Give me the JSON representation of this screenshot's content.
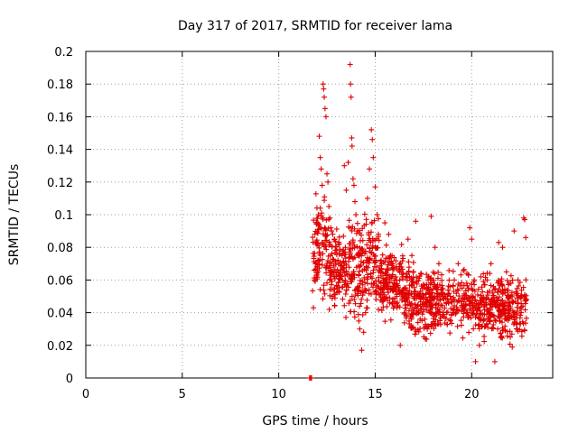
{
  "chart_data": {
    "type": "scatter",
    "title": "Day 317 of 2017, SRMTID for receiver lama",
    "xlabel": "GPS time / hours",
    "ylabel": "SRMTID / TECUs",
    "xlim": [
      0,
      24.2
    ],
    "ylim": [
      0,
      0.2
    ],
    "xticks": [
      0,
      5,
      10,
      15,
      20
    ],
    "xtick_labels": [
      "0",
      "5",
      "10",
      "15",
      "20"
    ],
    "yticks": [
      0,
      0.02,
      0.04,
      0.06,
      0.08,
      0.1,
      0.12,
      0.14,
      0.16,
      0.18,
      0.2
    ],
    "ytick_labels": [
      "0",
      "0.02",
      "0.04",
      "0.06",
      "0.08",
      "0.1",
      "0.12",
      "0.14",
      "0.16",
      "0.18",
      "0.2"
    ],
    "grid": true,
    "marker": "+",
    "color": "#e00000",
    "series": [
      {
        "name": "SRMTID",
        "points": [
          [
            11.6,
            0.0
          ],
          [
            11.65,
            0.0
          ],
          [
            11.7,
            0.0
          ],
          [
            11.8,
            0.043
          ],
          [
            11.85,
            0.06
          ],
          [
            11.9,
            0.07
          ],
          [
            11.95,
            0.082
          ],
          [
            12.0,
            0.09
          ],
          [
            12.05,
            0.1
          ],
          [
            12.1,
            0.148
          ],
          [
            12.15,
            0.135
          ],
          [
            12.2,
            0.128
          ],
          [
            12.25,
            0.118
          ],
          [
            12.3,
            0.18
          ],
          [
            12.33,
            0.177
          ],
          [
            12.36,
            0.172
          ],
          [
            12.4,
            0.165
          ],
          [
            12.45,
            0.16
          ],
          [
            12.5,
            0.125
          ],
          [
            12.55,
            0.12
          ],
          [
            12.6,
            0.105
          ],
          [
            12.65,
            0.098
          ],
          [
            12.7,
            0.092
          ],
          [
            12.8,
            0.088
          ],
          [
            12.9,
            0.085
          ],
          [
            13.0,
            0.078
          ],
          [
            13.1,
            0.07
          ],
          [
            13.2,
            0.066
          ],
          [
            13.3,
            0.06
          ],
          [
            13.4,
            0.13
          ],
          [
            13.5,
            0.115
          ],
          [
            13.6,
            0.132
          ],
          [
            13.7,
            0.192
          ],
          [
            13.72,
            0.18
          ],
          [
            13.75,
            0.172
          ],
          [
            13.78,
            0.147
          ],
          [
            13.8,
            0.142
          ],
          [
            13.85,
            0.122
          ],
          [
            13.9,
            0.118
          ],
          [
            13.95,
            0.108
          ],
          [
            14.0,
            0.1
          ],
          [
            14.1,
            0.09
          ],
          [
            14.2,
            0.03
          ],
          [
            14.3,
            0.017
          ],
          [
            14.4,
            0.028
          ],
          [
            14.5,
            0.04
          ],
          [
            14.6,
            0.11
          ],
          [
            14.7,
            0.128
          ],
          [
            14.8,
            0.152
          ],
          [
            14.85,
            0.146
          ],
          [
            14.9,
            0.135
          ],
          [
            15.0,
            0.117
          ],
          [
            15.1,
            0.1
          ],
          [
            15.2,
            0.065
          ],
          [
            15.3,
            0.058
          ],
          [
            15.5,
            0.095
          ],
          [
            15.7,
            0.088
          ],
          [
            15.9,
            0.07
          ],
          [
            16.1,
            0.06
          ],
          [
            16.3,
            0.02
          ],
          [
            16.5,
            0.055
          ],
          [
            16.7,
            0.085
          ],
          [
            16.9,
            0.075
          ],
          [
            17.1,
            0.096
          ],
          [
            17.3,
            0.05
          ],
          [
            17.5,
            0.045
          ],
          [
            17.7,
            0.03
          ],
          [
            17.9,
            0.099
          ],
          [
            18.1,
            0.08
          ],
          [
            18.3,
            0.07
          ],
          [
            18.5,
            0.05
          ],
          [
            18.7,
            0.04
          ],
          [
            18.9,
            0.035
          ],
          [
            19.1,
            0.06
          ],
          [
            19.3,
            0.07
          ],
          [
            19.5,
            0.055
          ],
          [
            19.7,
            0.045
          ],
          [
            19.9,
            0.092
          ],
          [
            20.0,
            0.085
          ],
          [
            20.2,
            0.01
          ],
          [
            20.4,
            0.02
          ],
          [
            20.6,
            0.035
          ],
          [
            20.8,
            0.06
          ],
          [
            21.0,
            0.07
          ],
          [
            21.2,
            0.01
          ],
          [
            21.4,
            0.083
          ],
          [
            21.6,
            0.08
          ],
          [
            21.8,
            0.065
          ],
          [
            22.0,
            0.025
          ],
          [
            22.2,
            0.09
          ],
          [
            22.4,
            0.06
          ],
          [
            22.6,
            0.05
          ],
          [
            22.7,
            0.098
          ],
          [
            22.75,
            0.097
          ],
          [
            22.8,
            0.086
          ]
        ],
        "band": {
          "x_start": 11.75,
          "x_end": 22.85,
          "segments": [
            {
              "x0": 11.75,
              "x1": 12.6,
              "ymin": 0.04,
              "ymax": 0.12
            },
            {
              "x0": 12.6,
              "x1": 13.6,
              "ymin": 0.03,
              "ymax": 0.1
            },
            {
              "x0": 13.6,
              "x1": 14.4,
              "ymin": 0.025,
              "ymax": 0.11
            },
            {
              "x0": 14.4,
              "x1": 15.2,
              "ymin": 0.03,
              "ymax": 0.11
            },
            {
              "x0": 15.2,
              "x1": 16.5,
              "ymin": 0.03,
              "ymax": 0.085
            },
            {
              "x0": 16.5,
              "x1": 18.5,
              "ymin": 0.018,
              "ymax": 0.075
            },
            {
              "x0": 18.5,
              "x1": 20.2,
              "ymin": 0.02,
              "ymax": 0.07
            },
            {
              "x0": 20.2,
              "x1": 22.85,
              "ymin": 0.015,
              "ymax": 0.068
            }
          ],
          "count": 1350
        }
      }
    ]
  }
}
